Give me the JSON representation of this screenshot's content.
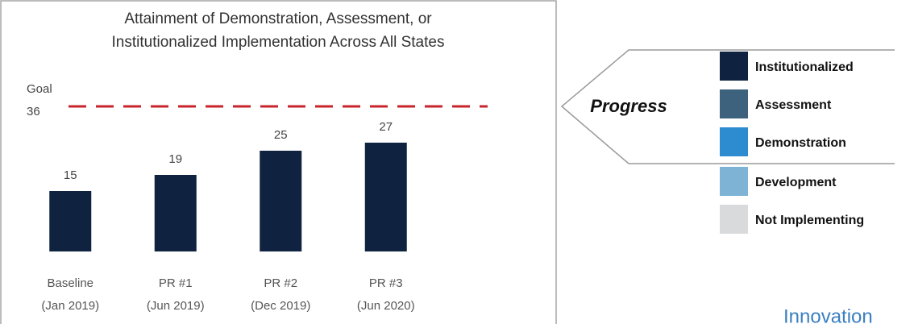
{
  "chart_data": {
    "type": "bar",
    "title": [
      "Attainment of Demonstration, Assessment, or",
      "Institutionalized Implementation Across All States"
    ],
    "categories": [
      [
        "Baseline",
        "(Jan 2019)"
      ],
      [
        "PR #1",
        "(Jun 2019)"
      ],
      [
        "PR #2",
        "(Dec 2019)"
      ],
      [
        "PR #3",
        "(Jun 2020)"
      ]
    ],
    "values": [
      15,
      19,
      25,
      27
    ],
    "color": "#0f2340",
    "ylim": [
      0,
      40
    ],
    "goal": {
      "label": "Goal",
      "value": 36,
      "color": "#c8242b"
    },
    "legend": {
      "title": "Progress",
      "items": [
        {
          "name": "Institutionalized",
          "color": "#0f2340"
        },
        {
          "name": "Assessment",
          "color": "#3d627e"
        },
        {
          "name": "Demonstration",
          "color": "#2d8ccf"
        },
        {
          "name": "Development",
          "color": "#7fb3d5"
        },
        {
          "name": "Not Implementing",
          "color": "#d9dadc"
        }
      ]
    }
  },
  "footer": {
    "text": "Innovation"
  }
}
